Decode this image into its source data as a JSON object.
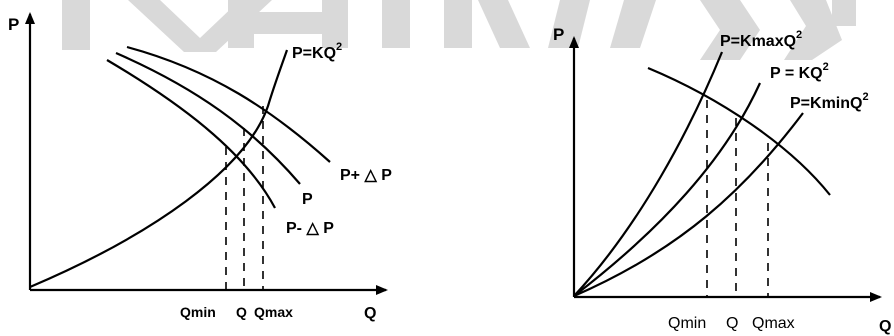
{
  "left_diagram": {
    "y_axis_label": "P",
    "x_axis_label": "Q",
    "curve_system_label": "P=KQ",
    "curve_system_exp": "2",
    "curve_pump_high_label": "P+ △ P",
    "curve_pump_label": "P",
    "curve_pump_low_label": "P- △ P",
    "tick_qmin": "Qmin",
    "tick_q": "Q",
    "tick_qmax": "Qmax"
  },
  "right_diagram": {
    "y_axis_label": "P",
    "x_axis_label": "Q",
    "curve_kmax_label": "P=KmaxQ",
    "curve_kmax_exp": "2",
    "curve_k_label": "P = KQ",
    "curve_k_exp": "2",
    "curve_kmin_label": "P=KminQ",
    "curve_kmin_exp": "2",
    "tick_qmin": "Qmin",
    "tick_q": "Q",
    "tick_qmax": "Qmax"
  },
  "colors": {
    "ink": "#000000",
    "watermark": "#d9d9d9",
    "background": "#ffffff"
  }
}
